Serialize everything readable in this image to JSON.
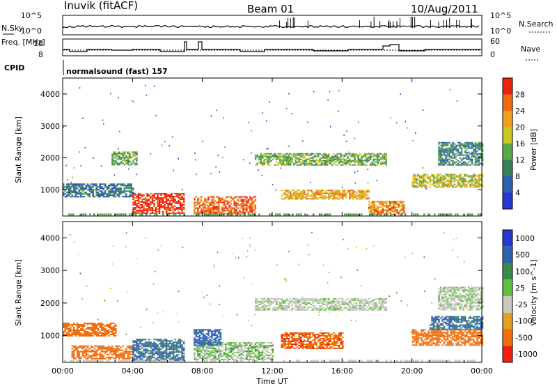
{
  "header": {
    "station": "Inuvik (fitACF)",
    "beam": "Beam 01",
    "date": "10/Aug/2011"
  },
  "status_panel": {
    "left_labels": [
      "N.Sky",
      "Freq. [MHz]",
      "CPID"
    ],
    "right_labels": [
      "N.Search",
      "Nave"
    ],
    "nsky_ticks": [
      "10^5",
      "10^0"
    ],
    "freq_ticks": [
      "18",
      "8"
    ],
    "nave_ticks": [
      "60",
      "0"
    ],
    "cpid_text": "normalsound (fast) 157"
  },
  "colors": {
    "power": [
      "#2838d0",
      "#2e5fb0",
      "#3a7f5a",
      "#5aa848",
      "#c8c820",
      "#f0a020",
      "#f06a10",
      "#f02010"
    ],
    "velocity": [
      "#2838d0",
      "#3060b0",
      "#3a8a4a",
      "#60c040",
      "#c8c8c0",
      "#e0a020",
      "#f07010",
      "#f02010"
    ]
  },
  "chart_data": [
    {
      "type": "heatmap",
      "title": "",
      "xlabel": "Time UT",
      "ylabel": "Slant Range [km]",
      "x_ticks": [
        "00:00",
        "04:00",
        "08:00",
        "12:00",
        "16:00",
        "20:00",
        "00:00"
      ],
      "x_range_hours": [
        0,
        24
      ],
      "y_range_km": [
        180,
        4500
      ],
      "y_ticks": [
        1000,
        2000,
        3000,
        4000
      ],
      "colorbar": {
        "label": "Power [dB]",
        "ticks": [
          4,
          8,
          12,
          16,
          20,
          24,
          28
        ],
        "range": [
          0,
          32
        ]
      },
      "data_gap_hours": [
        7.0,
        7.5
      ],
      "regions": [
        {
          "t": [
            0.0,
            4.0
          ],
          "r": [
            800,
            1200
          ],
          "v": 8
        },
        {
          "t": [
            2.8,
            4.2
          ],
          "r": [
            1800,
            2200
          ],
          "v": 14
        },
        {
          "t": [
            4.0,
            7.0
          ],
          "r": [
            250,
            900
          ],
          "v": 30
        },
        {
          "t": [
            7.5,
            11.0
          ],
          "r": [
            250,
            800
          ],
          "v": 26
        },
        {
          "t": [
            11.0,
            18.5
          ],
          "r": [
            1800,
            2150
          ],
          "v": 14
        },
        {
          "t": [
            12.5,
            17.5
          ],
          "r": [
            700,
            1000
          ],
          "v": 22
        },
        {
          "t": [
            17.5,
            19.5
          ],
          "r": [
            250,
            650
          ],
          "v": 24
        },
        {
          "t": [
            20.0,
            24.0
          ],
          "r": [
            1100,
            1500
          ],
          "v": 18
        },
        {
          "t": [
            21.5,
            24.0
          ],
          "r": [
            1800,
            2500
          ],
          "v": 10
        }
      ]
    },
    {
      "type": "heatmap",
      "title": "",
      "xlabel": "Time UT",
      "ylabel": "Slant Range [km]",
      "x_ticks": [
        "00:00",
        "04:00",
        "08:00",
        "12:00",
        "16:00",
        "20:00",
        "00:00"
      ],
      "x_range_hours": [
        0,
        24
      ],
      "y_range_km": [
        180,
        4500
      ],
      "y_ticks": [
        1000,
        2000,
        3000,
        4000
      ],
      "colorbar": {
        "label": "Velocity [m s^-1]",
        "ticks": [
          "1000",
          "500",
          "100",
          "25",
          "-25",
          "-100",
          "-500",
          "-1000"
        ]
      },
      "data_gap_hours": [
        7.0,
        7.5
      ],
      "regions": [
        {
          "t": [
            0.0,
            3.0
          ],
          "r": [
            1000,
            1400
          ],
          "v": -300
        },
        {
          "t": [
            0.5,
            4.0
          ],
          "r": [
            300,
            700
          ],
          "v": -250
        },
        {
          "t": [
            4.0,
            7.0
          ],
          "r": [
            250,
            900
          ],
          "v": 120
        },
        {
          "t": [
            7.5,
            12.0
          ],
          "r": [
            250,
            800
          ],
          "v": 10
        },
        {
          "t": [
            7.5,
            9.0
          ],
          "r": [
            700,
            1200
          ],
          "v": 200
        },
        {
          "t": [
            11.0,
            18.5
          ],
          "r": [
            1800,
            2150
          ],
          "v": 0
        },
        {
          "t": [
            12.5,
            16.0
          ],
          "r": [
            600,
            1100
          ],
          "v": -400
        },
        {
          "t": [
            20.0,
            24.0
          ],
          "r": [
            700,
            1200
          ],
          "v": -300
        },
        {
          "t": [
            21.0,
            24.0
          ],
          "r": [
            1200,
            1600
          ],
          "v": 120
        },
        {
          "t": [
            21.5,
            24.0
          ],
          "r": [
            1800,
            2500
          ],
          "v": 0
        }
      ]
    }
  ]
}
